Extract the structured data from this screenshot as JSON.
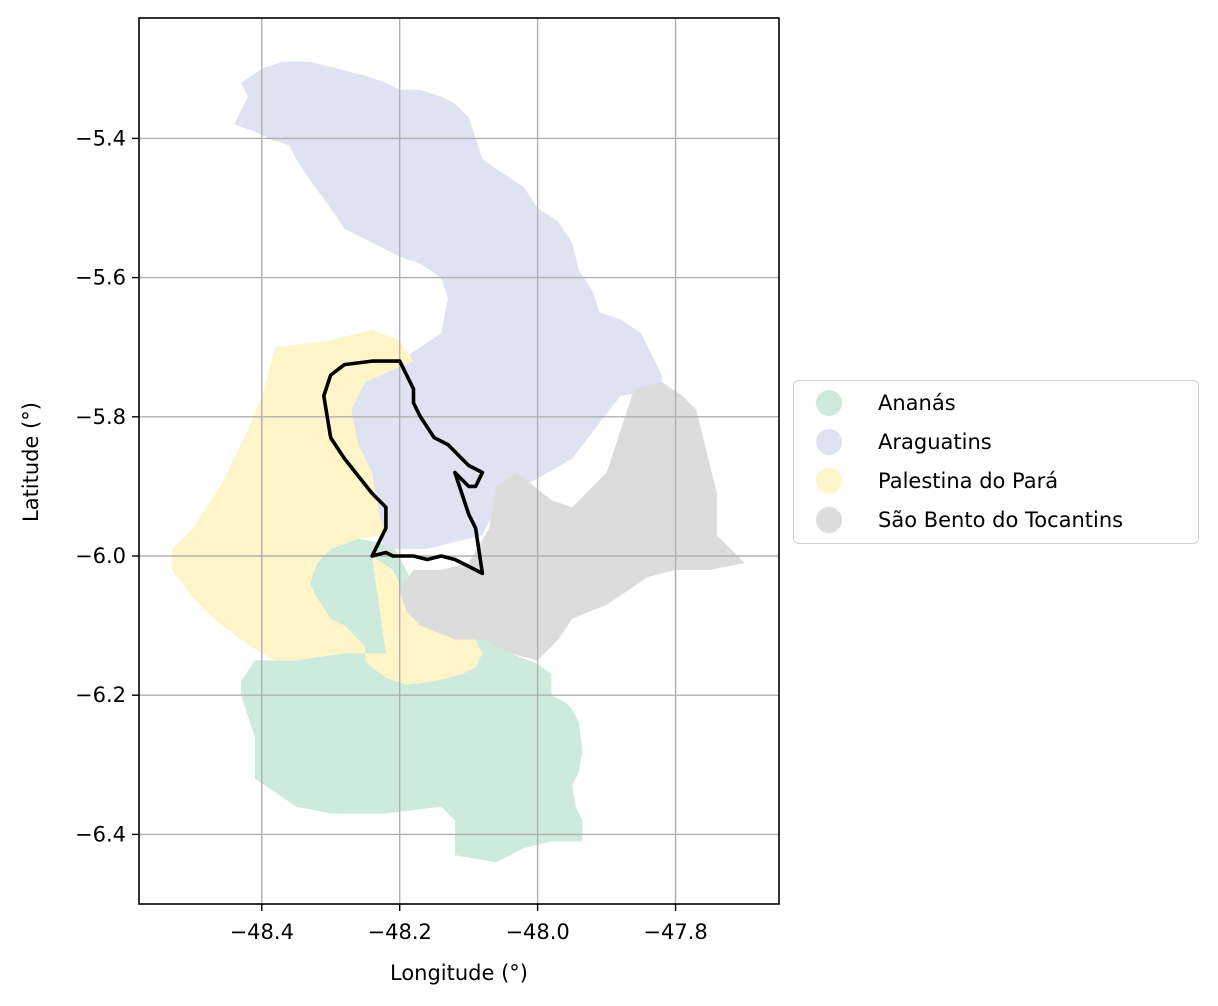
{
  "chart_data": {
    "type": "map",
    "xlabel": "Longitude (°)",
    "ylabel": "Latitude (°)",
    "xlim": [
      -48.578,
      -47.65
    ],
    "ylim": [
      -6.5,
      -5.227
    ],
    "x_ticks": [
      -48.4,
      -48.2,
      -48.0,
      -47.8
    ],
    "x_tick_labels": [
      "−48.4",
      "−48.2",
      "−48.0",
      "−47.8"
    ],
    "y_ticks": [
      -5.4,
      -5.6,
      -5.8,
      -6.0,
      -6.2,
      -6.4
    ],
    "y_tick_labels": [
      "−5.4",
      "−5.6",
      "−5.8",
      "−6.0",
      "−6.2",
      "−6.4"
    ],
    "grid": true,
    "legend_position": "right, outside",
    "regions": [
      {
        "name": "Ananás",
        "color": "#cdebdc",
        "polygon": [
          [
            -48.26,
            -5.975
          ],
          [
            -48.21,
            -5.985
          ],
          [
            -48.18,
            -6.04
          ],
          [
            -48.19,
            -6.08
          ],
          [
            -48.17,
            -6.1
          ],
          [
            -48.12,
            -6.12
          ],
          [
            -48.08,
            -6.12
          ],
          [
            -48.04,
            -6.14
          ],
          [
            -48.0,
            -6.155
          ],
          [
            -47.98,
            -6.17
          ],
          [
            -47.98,
            -6.2
          ],
          [
            -47.96,
            -6.21
          ],
          [
            -47.95,
            -6.22
          ],
          [
            -47.94,
            -6.24
          ],
          [
            -47.935,
            -6.28
          ],
          [
            -47.94,
            -6.31
          ],
          [
            -47.95,
            -6.33
          ],
          [
            -47.945,
            -6.36
          ],
          [
            -47.935,
            -6.38
          ],
          [
            -47.935,
            -6.41
          ],
          [
            -47.98,
            -6.41
          ],
          [
            -48.02,
            -6.42
          ],
          [
            -48.06,
            -6.44
          ],
          [
            -48.12,
            -6.43
          ],
          [
            -48.12,
            -6.38
          ],
          [
            -48.14,
            -6.36
          ],
          [
            -48.22,
            -6.37
          ],
          [
            -48.3,
            -6.37
          ],
          [
            -48.35,
            -6.36
          ],
          [
            -48.38,
            -6.34
          ],
          [
            -48.41,
            -6.32
          ],
          [
            -48.41,
            -6.26
          ],
          [
            -48.43,
            -6.2
          ],
          [
            -48.43,
            -6.18
          ],
          [
            -48.41,
            -6.15
          ],
          [
            -48.38,
            -6.15
          ],
          [
            -48.35,
            -6.14
          ],
          [
            -48.32,
            -6.12
          ],
          [
            -48.3,
            -6.09
          ],
          [
            -48.32,
            -6.06
          ],
          [
            -48.33,
            -6.04
          ],
          [
            -48.32,
            -6.01
          ],
          [
            -48.3,
            -5.99
          ]
        ]
      },
      {
        "name": "Araguatins",
        "color": "#dfe3f1",
        "polygon": [
          [
            -48.42,
            -5.34
          ],
          [
            -48.43,
            -5.32
          ],
          [
            -48.4,
            -5.3
          ],
          [
            -48.37,
            -5.29
          ],
          [
            -48.33,
            -5.29
          ],
          [
            -48.29,
            -5.3
          ],
          [
            -48.25,
            -5.31
          ],
          [
            -48.22,
            -5.32
          ],
          [
            -48.2,
            -5.33
          ],
          [
            -48.17,
            -5.33
          ],
          [
            -48.14,
            -5.34
          ],
          [
            -48.12,
            -5.35
          ],
          [
            -48.1,
            -5.37
          ],
          [
            -48.09,
            -5.4
          ],
          [
            -48.08,
            -5.43
          ],
          [
            -48.05,
            -5.45
          ],
          [
            -48.02,
            -5.47
          ],
          [
            -48.0,
            -5.5
          ],
          [
            -47.97,
            -5.52
          ],
          [
            -47.95,
            -5.55
          ],
          [
            -47.94,
            -5.59
          ],
          [
            -47.92,
            -5.62
          ],
          [
            -47.91,
            -5.65
          ],
          [
            -47.88,
            -5.66
          ],
          [
            -47.85,
            -5.68
          ],
          [
            -47.84,
            -5.7
          ],
          [
            -47.83,
            -5.72
          ],
          [
            -47.82,
            -5.74
          ],
          [
            -47.82,
            -5.76
          ],
          [
            -47.88,
            -5.77
          ],
          [
            -47.95,
            -5.86
          ],
          [
            -48.02,
            -5.9
          ],
          [
            -48.06,
            -5.93
          ],
          [
            -48.08,
            -5.97
          ],
          [
            -48.16,
            -5.99
          ],
          [
            -48.22,
            -5.99
          ],
          [
            -48.24,
            -5.95
          ],
          [
            -48.25,
            -5.88
          ],
          [
            -48.27,
            -5.84
          ],
          [
            -48.28,
            -5.78
          ],
          [
            -48.26,
            -5.75
          ],
          [
            -48.2,
            -5.72
          ],
          [
            -48.17,
            -5.7
          ],
          [
            -48.14,
            -5.68
          ],
          [
            -48.13,
            -5.63
          ],
          [
            -48.14,
            -5.6
          ],
          [
            -48.17,
            -5.58
          ],
          [
            -48.2,
            -5.57
          ],
          [
            -48.24,
            -5.55
          ],
          [
            -48.28,
            -5.53
          ],
          [
            -48.3,
            -5.5
          ],
          [
            -48.33,
            -5.46
          ],
          [
            -48.35,
            -5.43
          ],
          [
            -48.36,
            -5.41
          ],
          [
            -48.39,
            -5.4
          ],
          [
            -48.41,
            -5.39
          ],
          [
            -48.44,
            -5.38
          ]
        ]
      },
      {
        "name": "Palestina do Pará",
        "color": "#fff5c8",
        "polygon": [
          [
            -48.38,
            -5.7
          ],
          [
            -48.3,
            -5.69
          ],
          [
            -48.24,
            -5.675
          ],
          [
            -48.2,
            -5.69
          ],
          [
            -48.18,
            -5.72
          ],
          [
            -48.25,
            -5.75
          ],
          [
            -48.27,
            -5.79
          ],
          [
            -48.26,
            -5.84
          ],
          [
            -48.24,
            -5.88
          ],
          [
            -48.23,
            -5.94
          ],
          [
            -48.22,
            -5.97
          ],
          [
            -48.26,
            -5.975
          ],
          [
            -48.3,
            -5.99
          ],
          [
            -48.32,
            -6.01
          ],
          [
            -48.33,
            -6.04
          ],
          [
            -48.32,
            -6.06
          ],
          [
            -48.3,
            -6.09
          ],
          [
            -48.28,
            -6.1
          ],
          [
            -48.26,
            -6.12
          ],
          [
            -48.25,
            -6.13
          ],
          [
            -48.25,
            -6.15
          ],
          [
            -48.24,
            -6.16
          ],
          [
            -48.22,
            -6.175
          ],
          [
            -48.19,
            -6.185
          ],
          [
            -48.15,
            -6.18
          ],
          [
            -48.11,
            -6.17
          ],
          [
            -48.09,
            -6.16
          ],
          [
            -48.08,
            -6.14
          ],
          [
            -48.09,
            -6.12
          ],
          [
            -48.12,
            -6.12
          ],
          [
            -48.17,
            -6.1
          ],
          [
            -48.19,
            -6.08
          ],
          [
            -48.2,
            -6.04
          ],
          [
            -48.21,
            -6.02
          ],
          [
            -48.24,
            -6.0
          ],
          [
            -48.22,
            -6.14
          ],
          [
            -48.28,
            -6.14
          ],
          [
            -48.35,
            -6.15
          ],
          [
            -48.38,
            -6.15
          ],
          [
            -48.4,
            -6.14
          ],
          [
            -48.43,
            -6.12
          ],
          [
            -48.47,
            -6.09
          ],
          [
            -48.5,
            -6.06
          ],
          [
            -48.53,
            -6.02
          ],
          [
            -48.53,
            -5.99
          ],
          [
            -48.5,
            -5.96
          ],
          [
            -48.46,
            -5.9
          ],
          [
            -48.42,
            -5.82
          ],
          [
            -48.4,
            -5.77
          ]
        ]
      },
      {
        "name": "São Bento do Tocantins",
        "color": "#dcdcdc",
        "polygon": [
          [
            -47.86,
            -5.76
          ],
          [
            -47.82,
            -5.75
          ],
          [
            -47.79,
            -5.77
          ],
          [
            -47.77,
            -5.79
          ],
          [
            -47.76,
            -5.83
          ],
          [
            -47.75,
            -5.87
          ],
          [
            -47.74,
            -5.91
          ],
          [
            -47.74,
            -5.97
          ],
          [
            -47.7,
            -6.01
          ],
          [
            -47.75,
            -6.02
          ],
          [
            -47.8,
            -6.02
          ],
          [
            -47.84,
            -6.03
          ],
          [
            -47.9,
            -6.07
          ],
          [
            -47.95,
            -6.09
          ],
          [
            -47.97,
            -6.12
          ],
          [
            -48.0,
            -6.15
          ],
          [
            -48.04,
            -6.14
          ],
          [
            -48.08,
            -6.12
          ],
          [
            -48.12,
            -6.12
          ],
          [
            -48.17,
            -6.1
          ],
          [
            -48.19,
            -6.08
          ],
          [
            -48.2,
            -6.05
          ],
          [
            -48.18,
            -6.02
          ],
          [
            -48.14,
            -6.02
          ],
          [
            -48.1,
            -6.01
          ],
          [
            -48.07,
            -5.96
          ],
          [
            -48.06,
            -5.9
          ],
          [
            -48.03,
            -5.88
          ],
          [
            -47.98,
            -5.92
          ],
          [
            -47.95,
            -5.93
          ],
          [
            -47.9,
            -5.88
          ]
        ]
      }
    ],
    "outline": {
      "color": "#000000",
      "polygon": [
        [
          -48.24,
          -6.0
        ],
        [
          -48.22,
          -5.995
        ],
        [
          -48.21,
          -6.0
        ],
        [
          -48.18,
          -6.0
        ],
        [
          -48.16,
          -6.005
        ],
        [
          -48.14,
          -6.0
        ],
        [
          -48.12,
          -6.005
        ],
        [
          -48.1,
          -6.015
        ],
        [
          -48.08,
          -6.025
        ],
        [
          -48.09,
          -5.96
        ],
        [
          -48.1,
          -5.94
        ],
        [
          -48.12,
          -5.88
        ],
        [
          -48.1,
          -5.9
        ],
        [
          -48.09,
          -5.9
        ],
        [
          -48.08,
          -5.88
        ],
        [
          -48.1,
          -5.87
        ],
        [
          -48.11,
          -5.86
        ],
        [
          -48.13,
          -5.84
        ],
        [
          -48.15,
          -5.83
        ],
        [
          -48.17,
          -5.8
        ],
        [
          -48.18,
          -5.78
        ],
        [
          -48.18,
          -5.76
        ],
        [
          -48.19,
          -5.74
        ],
        [
          -48.2,
          -5.72
        ],
        [
          -48.24,
          -5.72
        ],
        [
          -48.28,
          -5.725
        ],
        [
          -48.3,
          -5.74
        ],
        [
          -48.31,
          -5.77
        ],
        [
          -48.3,
          -5.83
        ],
        [
          -48.28,
          -5.86
        ],
        [
          -48.24,
          -5.91
        ],
        [
          -48.22,
          -5.93
        ],
        [
          -48.22,
          -5.96
        ],
        [
          -48.23,
          -5.98
        ],
        [
          -48.24,
          -6.0
        ]
      ]
    }
  }
}
